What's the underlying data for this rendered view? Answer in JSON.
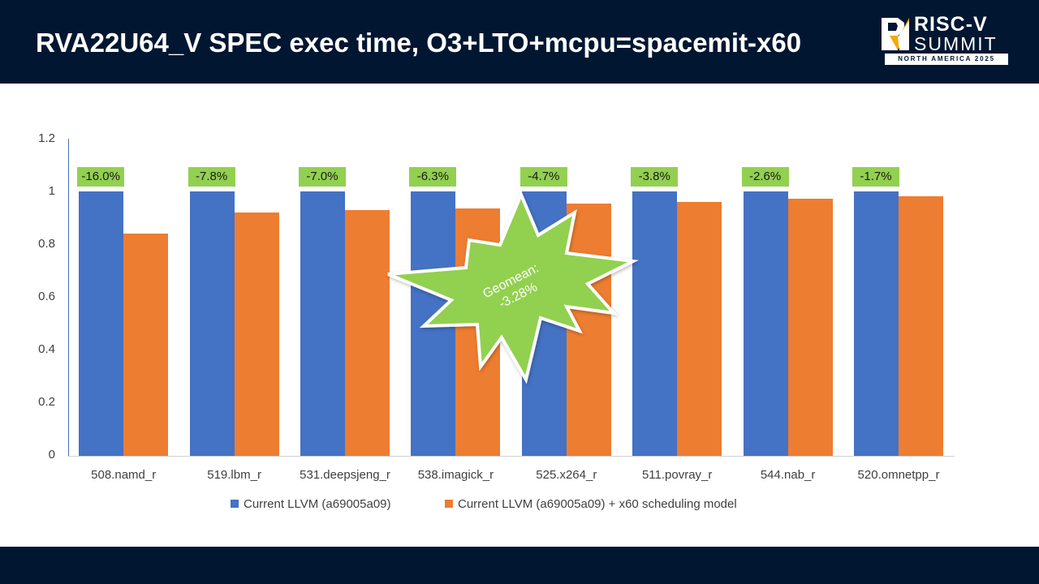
{
  "slide": {
    "title": "RVA22U64_V SPEC exec time, O3+LTO+mcpu=spacemit-x60",
    "logo": {
      "line1": "RISC-V",
      "line2": "SUMMIT",
      "band": "NORTH AMERICA 2025"
    },
    "colors": {
      "header_bg": "#011631",
      "series1": "#4472c4",
      "series2": "#ed7d31",
      "label_bg": "#92d050",
      "callout": "#92d050"
    }
  },
  "callout": {
    "line1": "Geomean:",
    "line2": "-3.28%"
  },
  "yticks": [
    "1.2",
    "1",
    "0.8",
    "0.6",
    "0.4",
    "0.2",
    "0"
  ],
  "legend": {
    "series1": "Current LLVM (a69005a09)",
    "series2": "Current LLVM (a69005a09) + x60 scheduling model"
  },
  "labels": [
    "-16.0%",
    "-7.8%",
    "-7.0%",
    "-6.3%",
    "-4.7%",
    "-3.8%",
    "-2.6%",
    "-1.7%"
  ],
  "categories": [
    "508.namd_r",
    "519.lbm_r",
    "531.deepsjeng_r",
    "538.imagick_r",
    "525.x264_r",
    "511.povray_r",
    "544.nab_r",
    "520.omnetpp_r"
  ],
  "chart_data": {
    "type": "bar",
    "title": "RVA22U64_V SPEC exec time, O3+LTO+mcpu=spacemit-x60",
    "xlabel": "",
    "ylabel": "",
    "ylim": [
      0,
      1.2
    ],
    "yticks": [
      0,
      0.2,
      0.4,
      0.6,
      0.8,
      1,
      1.2
    ],
    "grid": false,
    "legend_position": "bottom",
    "categories": [
      "508.namd_r",
      "519.lbm_r",
      "531.deepsjeng_r",
      "538.imagick_r",
      "525.x264_r",
      "511.povray_r",
      "544.nab_r",
      "520.omnetpp_r"
    ],
    "series": [
      {
        "name": "Current LLVM (a69005a09)",
        "color": "#4472c4",
        "values": [
          1,
          1,
          1,
          1,
          1,
          1,
          1,
          1
        ]
      },
      {
        "name": "Current LLVM (a69005a09) + x60 scheduling model",
        "color": "#ed7d31",
        "values": [
          0.84,
          0.922,
          0.93,
          0.937,
          0.953,
          0.962,
          0.974,
          0.983
        ]
      }
    ],
    "data_labels": [
      "-16.0%",
      "-7.8%",
      "-7.0%",
      "-6.3%",
      "-4.7%",
      "-3.8%",
      "-2.6%",
      "-1.7%"
    ],
    "annotations": [
      "Geomean: -3.28%"
    ]
  }
}
